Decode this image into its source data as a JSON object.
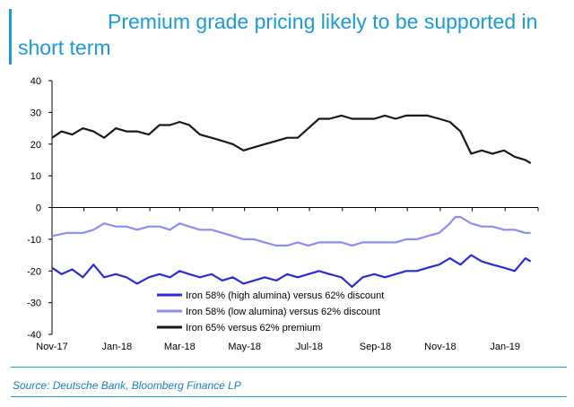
{
  "title": "Premium grade pricing likely to be supported in short term",
  "source": "Source: Deutsche Bank, Bloomberg Finance LP",
  "chart_data": {
    "type": "line",
    "ylim": [
      -40,
      40
    ],
    "yticks": [
      -40,
      -30,
      -20,
      -10,
      0,
      10,
      20,
      30,
      40
    ],
    "xlim": [
      "2017-11-01",
      "2019-02-01"
    ],
    "xticks": [
      {
        "date": "2017-11-01",
        "label": "Nov-17"
      },
      {
        "date": "2018-01-01",
        "label": "Jan-18"
      },
      {
        "date": "2018-03-01",
        "label": "Mar-18"
      },
      {
        "date": "2018-05-01",
        "label": "May-18"
      },
      {
        "date": "2018-07-01",
        "label": "Jul-18"
      },
      {
        "date": "2018-09-01",
        "label": "Sep-18"
      },
      {
        "date": "2018-11-01",
        "label": "Nov-18"
      },
      {
        "date": "2019-01-01",
        "label": "Jan-19"
      }
    ],
    "legend_position": "bottom-center",
    "series": [
      {
        "name": "Iron 58% (high alumina) versus 62% discount",
        "color": "#2b2bd9",
        "points": [
          [
            "2017-11-01",
            -19
          ],
          [
            "2017-11-10",
            -21
          ],
          [
            "2017-11-20",
            -19.5
          ],
          [
            "2017-11-30",
            -22
          ],
          [
            "2017-12-10",
            -18
          ],
          [
            "2017-12-20",
            -22
          ],
          [
            "2017-12-31",
            -21
          ],
          [
            "2018-01-10",
            -22
          ],
          [
            "2018-01-20",
            -24
          ],
          [
            "2018-01-31",
            -22
          ],
          [
            "2018-02-10",
            -21
          ],
          [
            "2018-02-20",
            -22
          ],
          [
            "2018-03-01",
            -20
          ],
          [
            "2018-03-10",
            -21
          ],
          [
            "2018-03-20",
            -22
          ],
          [
            "2018-03-31",
            -21
          ],
          [
            "2018-04-10",
            -23
          ],
          [
            "2018-04-20",
            -22
          ],
          [
            "2018-04-30",
            -24
          ],
          [
            "2018-05-10",
            -23
          ],
          [
            "2018-05-20",
            -22
          ],
          [
            "2018-05-31",
            -23
          ],
          [
            "2018-06-10",
            -21
          ],
          [
            "2018-06-20",
            -22
          ],
          [
            "2018-06-30",
            -21
          ],
          [
            "2018-07-10",
            -20
          ],
          [
            "2018-07-20",
            -21
          ],
          [
            "2018-07-31",
            -22
          ],
          [
            "2018-08-10",
            -25
          ],
          [
            "2018-08-20",
            -22
          ],
          [
            "2018-08-31",
            -21
          ],
          [
            "2018-09-10",
            -22
          ],
          [
            "2018-09-20",
            -21
          ],
          [
            "2018-09-30",
            -20
          ],
          [
            "2018-10-10",
            -20
          ],
          [
            "2018-10-20",
            -19
          ],
          [
            "2018-10-31",
            -18
          ],
          [
            "2018-11-10",
            -16
          ],
          [
            "2018-11-20",
            -18
          ],
          [
            "2018-11-30",
            -15
          ],
          [
            "2018-12-10",
            -17
          ],
          [
            "2018-12-20",
            -18
          ],
          [
            "2018-12-31",
            -19
          ],
          [
            "2019-01-10",
            -20
          ],
          [
            "2019-01-20",
            -16
          ],
          [
            "2019-01-25",
            -17
          ]
        ]
      },
      {
        "name": "Iron 58% (low alumina) versus 62% discount",
        "color": "#8c8cf2",
        "points": [
          [
            "2017-11-01",
            -9
          ],
          [
            "2017-11-15",
            -8
          ],
          [
            "2017-11-30",
            -8
          ],
          [
            "2017-12-10",
            -7
          ],
          [
            "2017-12-20",
            -5
          ],
          [
            "2017-12-31",
            -6
          ],
          [
            "2018-01-10",
            -6
          ],
          [
            "2018-01-20",
            -7
          ],
          [
            "2018-01-31",
            -6
          ],
          [
            "2018-02-10",
            -6
          ],
          [
            "2018-02-20",
            -7
          ],
          [
            "2018-03-01",
            -5
          ],
          [
            "2018-03-10",
            -6
          ],
          [
            "2018-03-20",
            -7
          ],
          [
            "2018-03-31",
            -7
          ],
          [
            "2018-04-10",
            -8
          ],
          [
            "2018-04-20",
            -9
          ],
          [
            "2018-04-30",
            -10
          ],
          [
            "2018-05-10",
            -10
          ],
          [
            "2018-05-20",
            -11
          ],
          [
            "2018-05-31",
            -12
          ],
          [
            "2018-06-10",
            -12
          ],
          [
            "2018-06-20",
            -11
          ],
          [
            "2018-06-30",
            -12
          ],
          [
            "2018-07-10",
            -11
          ],
          [
            "2018-07-20",
            -11
          ],
          [
            "2018-07-31",
            -11
          ],
          [
            "2018-08-10",
            -12
          ],
          [
            "2018-08-20",
            -11
          ],
          [
            "2018-08-31",
            -11
          ],
          [
            "2018-09-10",
            -11
          ],
          [
            "2018-09-20",
            -11
          ],
          [
            "2018-09-30",
            -10
          ],
          [
            "2018-10-10",
            -10
          ],
          [
            "2018-10-20",
            -9
          ],
          [
            "2018-10-31",
            -8
          ],
          [
            "2018-11-10",
            -5
          ],
          [
            "2018-11-15",
            -3
          ],
          [
            "2018-11-20",
            -3
          ],
          [
            "2018-11-30",
            -5
          ],
          [
            "2018-12-10",
            -6
          ],
          [
            "2018-12-20",
            -6
          ],
          [
            "2018-12-31",
            -7
          ],
          [
            "2019-01-10",
            -7
          ],
          [
            "2019-01-20",
            -8
          ],
          [
            "2019-01-25",
            -8
          ]
        ]
      },
      {
        "name": "Iron 65% versus 62% premium",
        "color": "#1a1a1a",
        "points": [
          [
            "2017-11-01",
            22
          ],
          [
            "2017-11-10",
            24
          ],
          [
            "2017-11-20",
            23
          ],
          [
            "2017-11-30",
            25
          ],
          [
            "2017-12-10",
            24
          ],
          [
            "2017-12-20",
            22
          ],
          [
            "2017-12-31",
            25
          ],
          [
            "2018-01-10",
            24
          ],
          [
            "2018-01-20",
            24
          ],
          [
            "2018-01-31",
            23
          ],
          [
            "2018-02-10",
            26
          ],
          [
            "2018-02-20",
            26
          ],
          [
            "2018-03-01",
            27
          ],
          [
            "2018-03-10",
            26
          ],
          [
            "2018-03-20",
            23
          ],
          [
            "2018-03-31",
            22
          ],
          [
            "2018-04-10",
            21
          ],
          [
            "2018-04-20",
            20
          ],
          [
            "2018-04-30",
            18
          ],
          [
            "2018-05-10",
            19
          ],
          [
            "2018-05-20",
            20
          ],
          [
            "2018-05-31",
            21
          ],
          [
            "2018-06-10",
            22
          ],
          [
            "2018-06-20",
            22
          ],
          [
            "2018-06-30",
            25
          ],
          [
            "2018-07-10",
            28
          ],
          [
            "2018-07-20",
            28
          ],
          [
            "2018-07-31",
            29
          ],
          [
            "2018-08-10",
            28
          ],
          [
            "2018-08-20",
            28
          ],
          [
            "2018-08-31",
            28
          ],
          [
            "2018-09-10",
            29
          ],
          [
            "2018-09-20",
            28
          ],
          [
            "2018-09-30",
            29
          ],
          [
            "2018-10-10",
            29
          ],
          [
            "2018-10-20",
            29
          ],
          [
            "2018-10-31",
            28
          ],
          [
            "2018-11-10",
            27
          ],
          [
            "2018-11-20",
            24
          ],
          [
            "2018-11-30",
            17
          ],
          [
            "2018-12-10",
            18
          ],
          [
            "2018-12-20",
            17
          ],
          [
            "2018-12-31",
            18
          ],
          [
            "2019-01-10",
            16
          ],
          [
            "2019-01-20",
            15
          ],
          [
            "2019-01-25",
            14
          ]
        ]
      }
    ]
  }
}
